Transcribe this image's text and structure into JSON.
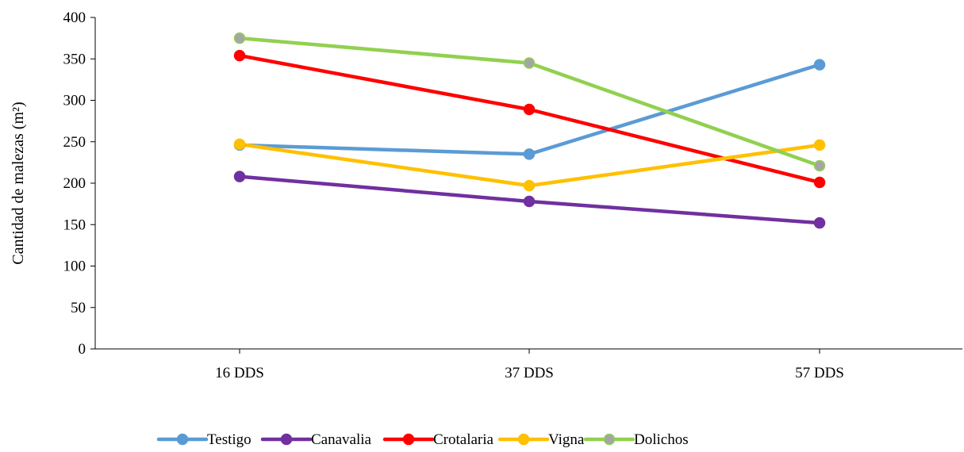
{
  "chart_data": {
    "type": "line",
    "title": "",
    "xlabel": "",
    "ylabel": "Cantidad de malezas (m²)",
    "categories": [
      "16 DDS",
      "37 DDS",
      "57 DDS"
    ],
    "ylim": [
      0,
      400
    ],
    "yticks": [
      0,
      50,
      100,
      150,
      200,
      250,
      300,
      350,
      400
    ],
    "grid": false,
    "legend_position": "bottom",
    "series": [
      {
        "name": "Testigo",
        "color": "#5B9BD5",
        "marker_color": "#5B9BD5",
        "values": [
          246,
          235,
          343
        ]
      },
      {
        "name": "Canavalia",
        "color": "#7030A0",
        "marker_color": "#7030A0",
        "values": [
          208,
          178,
          152
        ]
      },
      {
        "name": "Crotalaria",
        "color": "#FF0000",
        "marker_color": "#FF0000",
        "values": [
          354,
          289,
          201
        ]
      },
      {
        "name": "Vigna",
        "color": "#FFC000",
        "marker_color": "#FFC000",
        "values": [
          247,
          197,
          246
        ]
      },
      {
        "name": "Dolichos",
        "color": "#92D050",
        "marker_color": "#A5A5A5",
        "values": [
          375,
          345,
          221
        ]
      }
    ]
  }
}
